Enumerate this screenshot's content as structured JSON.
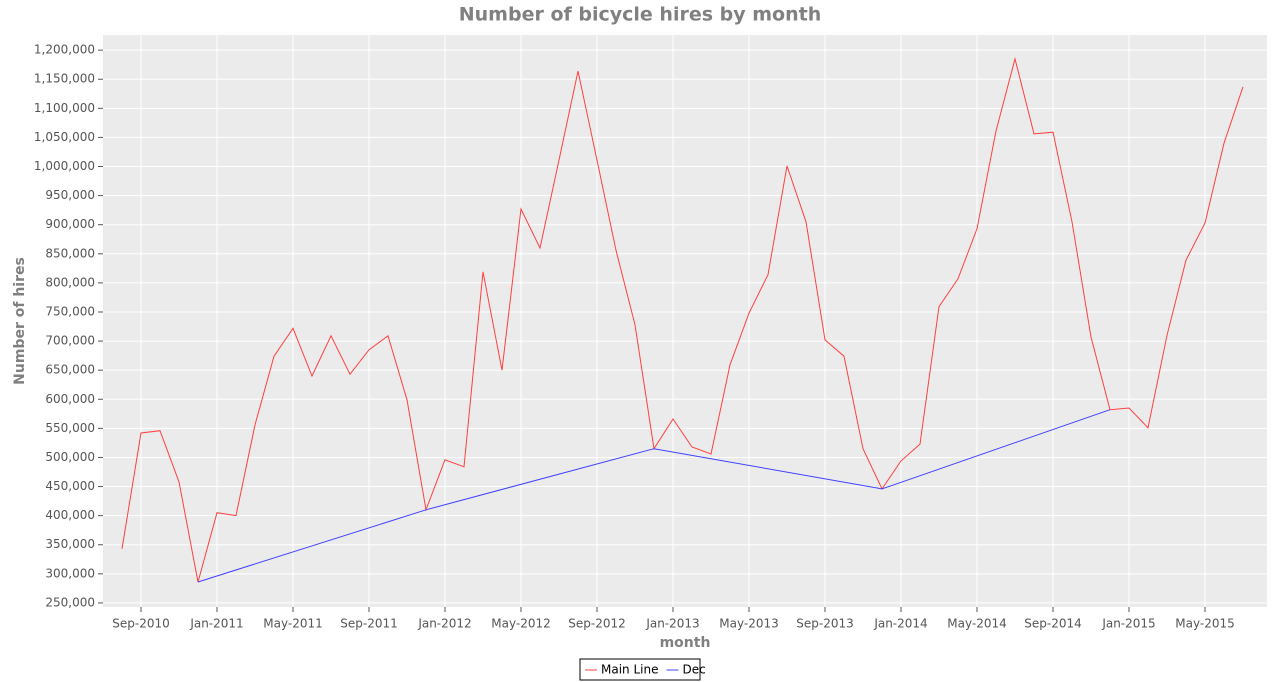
{
  "chart_data": {
    "type": "line",
    "title": "Number of bicycle hires by month",
    "xlabel": "month",
    "ylabel": "Number of hires",
    "series": [
      {
        "name": "Main Line",
        "color": "#ff4040",
        "x": [
          "2010-08",
          "2010-09",
          "2010-10",
          "2010-11",
          "2010-12",
          "2011-01",
          "2011-02",
          "2011-03",
          "2011-04",
          "2011-05",
          "2011-06",
          "2011-07",
          "2011-08",
          "2011-09",
          "2011-10",
          "2011-11",
          "2011-12",
          "2012-01",
          "2012-02",
          "2012-03",
          "2012-04",
          "2012-05",
          "2012-06",
          "2012-07",
          "2012-08",
          "2012-09",
          "2012-10",
          "2012-11",
          "2012-12",
          "2013-01",
          "2013-02",
          "2013-03",
          "2013-04",
          "2013-05",
          "2013-06",
          "2013-07",
          "2013-08",
          "2013-09",
          "2013-10",
          "2013-11",
          "2013-12",
          "2014-01",
          "2014-02",
          "2014-03",
          "2014-04",
          "2014-05",
          "2014-06",
          "2014-07",
          "2014-08",
          "2014-09",
          "2014-10",
          "2014-11",
          "2014-12",
          "2015-01",
          "2015-02",
          "2015-03",
          "2015-04",
          "2015-05",
          "2015-06",
          "2015-07"
        ],
        "values": [
          343000,
          542000,
          546000,
          458000,
          286000,
          405000,
          400000,
          556000,
          674000,
          722000,
          640000,
          709000,
          643000,
          685000,
          709000,
          599000,
          410000,
          496000,
          484000,
          819000,
          650000,
          927000,
          860000,
          1011000,
          1164000,
          1011000,
          856000,
          728000,
          515000,
          566000,
          518000,
          506000,
          659000,
          748000,
          814000,
          1001000,
          905000,
          702000,
          674000,
          515000,
          446000,
          494000,
          523000,
          759000,
          807000,
          893000,
          1061000,
          1185000,
          1056000,
          1059000,
          905000,
          707000,
          582000,
          585000,
          551000,
          710000,
          839000,
          903000,
          1040000,
          1137000
        ]
      },
      {
        "name": "Dec",
        "color": "#4040ff",
        "x": [
          "2010-12",
          "2011-12",
          "2012-12",
          "2013-12",
          "2014-12"
        ],
        "values": [
          286000,
          410000,
          515000,
          446000,
          582000
        ]
      }
    ],
    "xlim": [
      "2010-07",
      "2015-08"
    ],
    "xticks": [
      {
        "value": "2010-09",
        "label": "Sep-2010"
      },
      {
        "value": "2011-01",
        "label": "Jan-2011"
      },
      {
        "value": "2011-05",
        "label": "May-2011"
      },
      {
        "value": "2011-09",
        "label": "Sep-2011"
      },
      {
        "value": "2012-01",
        "label": "Jan-2012"
      },
      {
        "value": "2012-05",
        "label": "May-2012"
      },
      {
        "value": "2012-09",
        "label": "Sep-2012"
      },
      {
        "value": "2013-01",
        "label": "Jan-2013"
      },
      {
        "value": "2013-05",
        "label": "May-2013"
      },
      {
        "value": "2013-09",
        "label": "Sep-2013"
      },
      {
        "value": "2014-01",
        "label": "Jan-2014"
      },
      {
        "value": "2014-05",
        "label": "May-2014"
      },
      {
        "value": "2014-09",
        "label": "Sep-2014"
      },
      {
        "value": "2015-01",
        "label": "Jan-2015"
      },
      {
        "value": "2015-05",
        "label": "May-2015"
      }
    ],
    "ylim": [
      243000,
      1226000
    ],
    "yticks": [
      {
        "value": 250000,
        "label": "250,000"
      },
      {
        "value": 300000,
        "label": "300,000"
      },
      {
        "value": 350000,
        "label": "350,000"
      },
      {
        "value": 400000,
        "label": "400,000"
      },
      {
        "value": 450000,
        "label": "450,000"
      },
      {
        "value": 500000,
        "label": "500,000"
      },
      {
        "value": 550000,
        "label": "550,000"
      },
      {
        "value": 600000,
        "label": "600,000"
      },
      {
        "value": 650000,
        "label": "650,000"
      },
      {
        "value": 700000,
        "label": "700,000"
      },
      {
        "value": 750000,
        "label": "750,000"
      },
      {
        "value": 800000,
        "label": "800,000"
      },
      {
        "value": 850000,
        "label": "850,000"
      },
      {
        "value": 900000,
        "label": "900,000"
      },
      {
        "value": 950000,
        "label": "950,000"
      },
      {
        "value": 1000000,
        "label": "1,000,000"
      },
      {
        "value": 1050000,
        "label": "1,050,000"
      },
      {
        "value": 1100000,
        "label": "1,100,000"
      },
      {
        "value": 1150000,
        "label": "1,150,000"
      },
      {
        "value": 1200000,
        "label": "1,200,000"
      }
    ],
    "grid": true,
    "legend": "bottom"
  }
}
